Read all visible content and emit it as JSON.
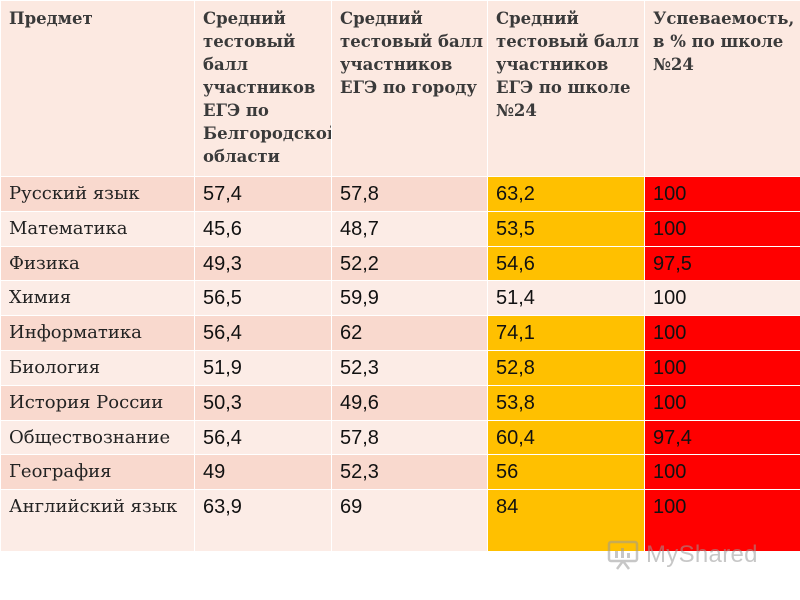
{
  "table": {
    "headers": [
      "Предмет",
      "Средний тестовый балл участников ЕГЭ по Белгородской области",
      "Средний тестовый балл участников ЕГЭ по городу",
      "Средний тестовый балл участников ЕГЭ по школе №24",
      "Успеваемость, в % по школе №24"
    ],
    "rows": [
      {
        "subject": "Русский язык",
        "region": "57,4",
        "city": "57,8",
        "school": "63,2",
        "success": "100"
      },
      {
        "subject": "Математика",
        "region": "45,6",
        "city": "48,7",
        "school": "53,5",
        "success": "100"
      },
      {
        "subject": "Физика",
        "region": "49,3",
        "city": "52,2",
        "school": "54,6",
        "success": "97,5"
      },
      {
        "subject": "Химия",
        "region": "56,5",
        "city": "59,9",
        "school": "51,4",
        "success": "100"
      },
      {
        "subject": "Информатика",
        "region": "56,4",
        "city": "62",
        "school": "74,1",
        "success": "100"
      },
      {
        "subject": "Биология",
        "region": "51,9",
        "city": "52,3",
        "school": "52,8",
        "success": "100"
      },
      {
        "subject": "История России",
        "region": "50,3",
        "city": "49,6",
        "school": "53,8",
        "success": "100"
      },
      {
        "subject": "Обществознание",
        "region": "56,4",
        "city": "57,8",
        "school": "60,4",
        "success": "97,4"
      },
      {
        "subject": "География",
        "region": "49",
        "city": "52,3",
        "school": "56",
        "success": "100"
      },
      {
        "subject": "Английский язык",
        "region": "63,9",
        "city": "69",
        "school": "84",
        "success": "100"
      }
    ]
  },
  "colors": {
    "highlight": "#ffc000",
    "red": "#ff0000",
    "header_bg": "#fce9e1",
    "row_bg_odd": "#f9d9ce",
    "row_bg_even": "#fcece6"
  },
  "watermark": {
    "text": "MyShared",
    "icon": "presentation-board-icon"
  }
}
